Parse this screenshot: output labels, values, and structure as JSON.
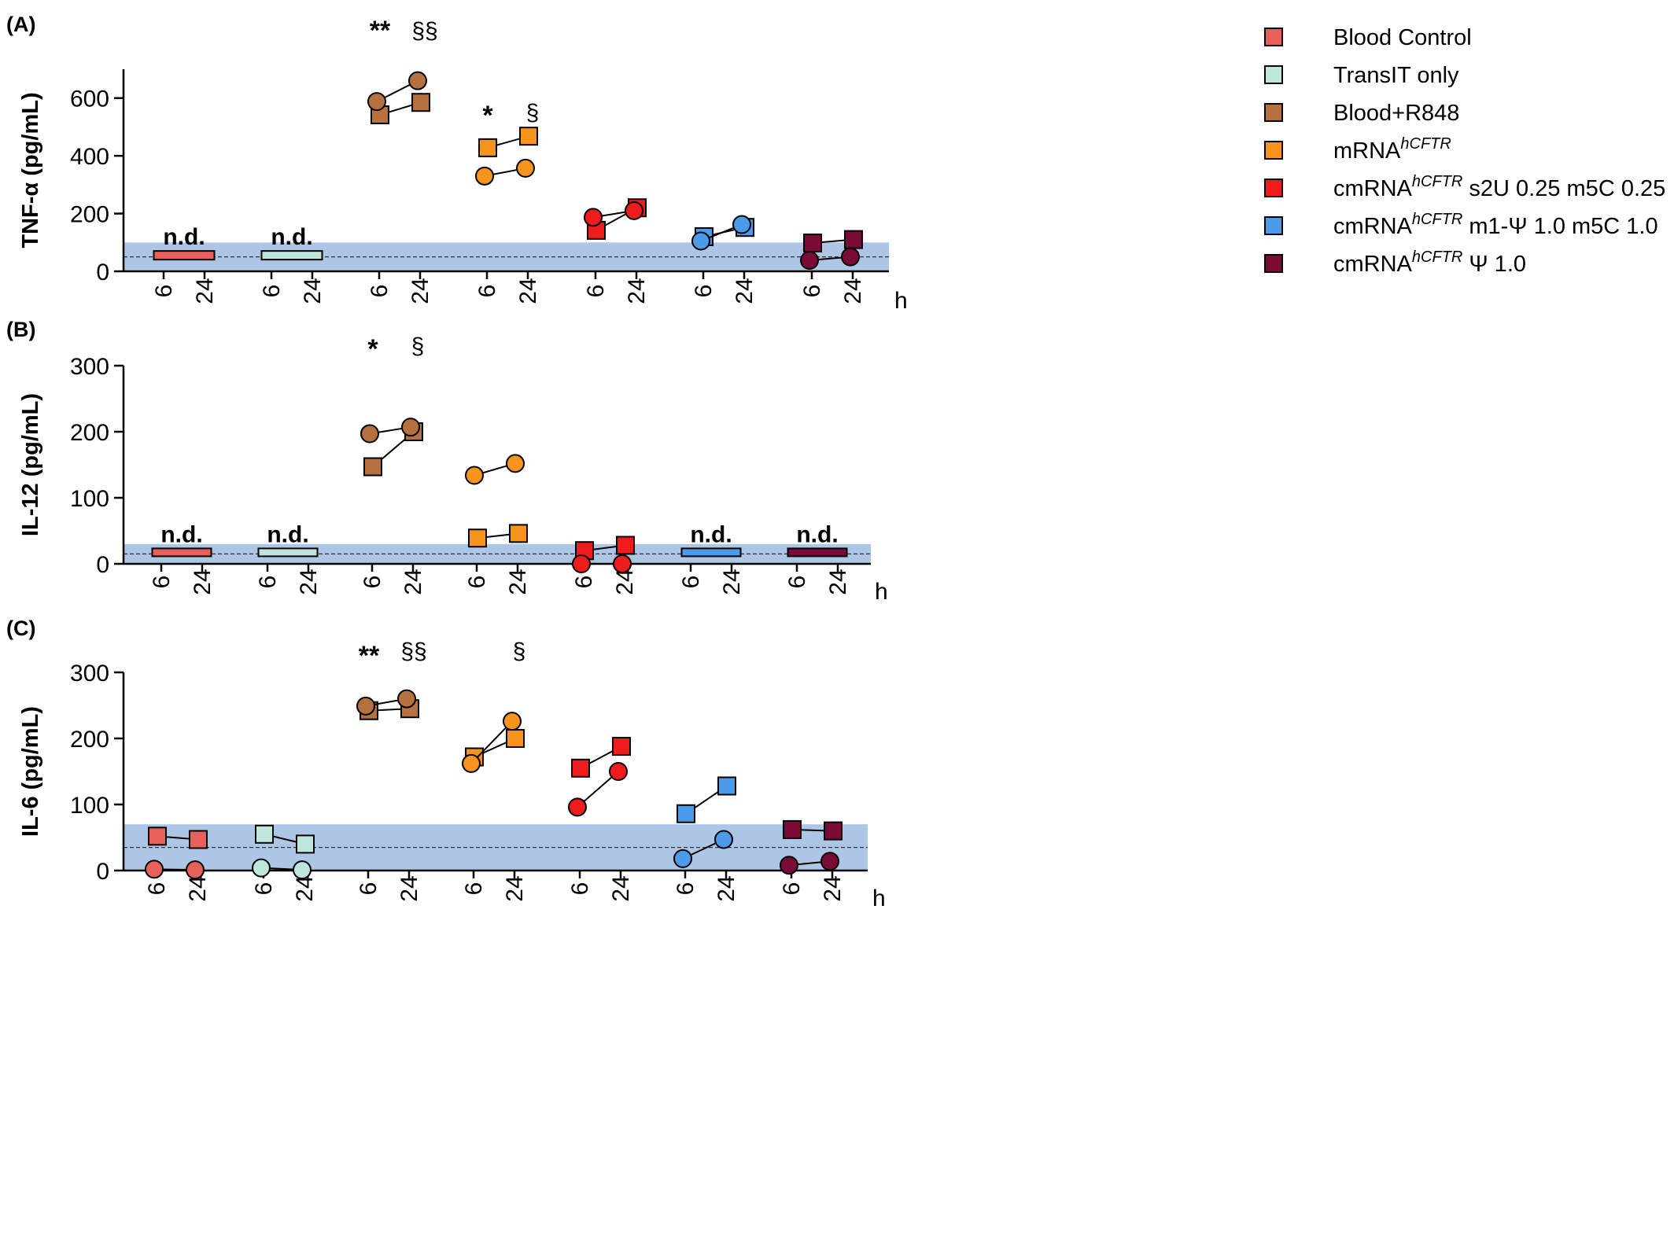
{
  "legend": [
    {
      "label": "Blood Control",
      "sup": "",
      "suffix": "",
      "color": "#e8605c"
    },
    {
      "label": "TransIT only",
      "sup": "",
      "suffix": "",
      "color": "#bfe6dd"
    },
    {
      "label": "Blood+R848",
      "sup": "",
      "suffix": "",
      "color": "#b5713f"
    },
    {
      "label": "mRNA",
      "sup": "hCFTR",
      "suffix": "",
      "color": "#f7941d"
    },
    {
      "label": "cmRNA",
      "sup": "hCFTR",
      "suffix": " s2U 0.25 m5C 0.25",
      "color": "#ee1c1c"
    },
    {
      "label": "cmRNA",
      "sup": "hCFTR",
      "suffix": " m1-Ψ 1.0 m5C 1.0",
      "color": "#4c9be8"
    },
    {
      "label": "cmRNA",
      "sup": "hCFTR",
      "suffix": " Ψ 1.0",
      "color": "#7a0a36"
    }
  ],
  "chart_data": [
    {
      "panel": "(A)",
      "type": "scatter",
      "ylabel": "TNF-α (pg/mL)",
      "ylim": [
        0,
        700
      ],
      "yticks": [
        0,
        200,
        400,
        600
      ],
      "x_tick_labels": [
        "6",
        "24"
      ],
      "x_unit": "h",
      "lod_band": [
        0,
        100
      ],
      "lod_line": 50,
      "groups": [
        {
          "name": "Blood Control",
          "nd": true,
          "circles": null,
          "squares": null,
          "sig6": "",
          "sig24": ""
        },
        {
          "name": "TransIT only",
          "nd": true,
          "circles": null,
          "squares": null,
          "sig6": "",
          "sig24": ""
        },
        {
          "name": "Blood+R848",
          "nd": false,
          "circles": [
            588,
            660
          ],
          "squares": [
            542,
            585
          ],
          "sig6": "**",
          "sig24": "§§"
        },
        {
          "name": "mRNA hCFTR",
          "nd": false,
          "circles": [
            330,
            357
          ],
          "squares": [
            428,
            468
          ],
          "sig6": "*",
          "sig24": "§"
        },
        {
          "name": "cmRNA hCFTR s2U 0.25 m5C 0.25",
          "nd": false,
          "circles": [
            187,
            210
          ],
          "squares": [
            142,
            220
          ],
          "sig6": "",
          "sig24": ""
        },
        {
          "name": "cmRNA hCFTR m1-Ψ 1.0 m5C 1.0",
          "nd": false,
          "circles": [
            105,
            162
          ],
          "squares": [
            120,
            152
          ],
          "sig6": "",
          "sig24": ""
        },
        {
          "name": "cmRNA hCFTR Ψ 1.0",
          "nd": false,
          "circles": [
            38,
            50
          ],
          "squares": [
            98,
            110
          ],
          "sig6": "",
          "sig24": ""
        }
      ],
      "nd_label": "n.d."
    },
    {
      "panel": "(B)",
      "type": "scatter",
      "ylabel": "IL-12 (pg/mL)",
      "ylim": [
        0,
        300
      ],
      "yticks": [
        0,
        100,
        200,
        300
      ],
      "x_tick_labels": [
        "6",
        "24"
      ],
      "x_unit": "h",
      "lod_band": [
        0,
        30
      ],
      "lod_line": 15,
      "groups": [
        {
          "name": "Blood Control",
          "nd": true,
          "circles": null,
          "squares": null,
          "sig6": "",
          "sig24": ""
        },
        {
          "name": "TransIT only",
          "nd": true,
          "circles": null,
          "squares": null,
          "sig6": "",
          "sig24": ""
        },
        {
          "name": "Blood+R848",
          "nd": false,
          "circles": [
            197,
            207
          ],
          "squares": [
            147,
            200
          ],
          "sig6": "*",
          "sig24": "§"
        },
        {
          "name": "mRNA hCFTR",
          "nd": false,
          "circles": [
            134,
            152
          ],
          "squares": [
            39,
            46
          ],
          "sig6": "",
          "sig24": ""
        },
        {
          "name": "cmRNA hCFTR s2U 0.25 m5C 0.25",
          "nd": false,
          "circles": [
            0,
            0
          ],
          "squares": [
            20,
            28
          ],
          "sig6": "",
          "sig24": ""
        },
        {
          "name": "cmRNA hCFTR m1-Ψ 1.0 m5C 1.0",
          "nd": true,
          "circles": null,
          "squares": null,
          "sig6": "",
          "sig24": ""
        },
        {
          "name": "cmRNA hCFTR Ψ 1.0",
          "nd": true,
          "circles": null,
          "squares": null,
          "sig6": "",
          "sig24": ""
        }
      ],
      "nd_label": "n.d."
    },
    {
      "panel": "(C)",
      "type": "scatter",
      "ylabel": "IL-6 (pg/mL)",
      "ylim": [
        0,
        300
      ],
      "yticks": [
        0,
        100,
        200,
        300
      ],
      "x_tick_labels": [
        "6",
        "24"
      ],
      "x_unit": "h",
      "lod_band": [
        0,
        70
      ],
      "lod_line": 35,
      "groups": [
        {
          "name": "Blood Control",
          "nd": false,
          "circles": [
            2,
            1
          ],
          "squares": [
            52,
            47
          ],
          "sig6": "",
          "sig24": ""
        },
        {
          "name": "TransIT only",
          "nd": false,
          "circles": [
            4,
            1
          ],
          "squares": [
            55,
            40
          ],
          "sig6": "",
          "sig24": ""
        },
        {
          "name": "Blood+R848",
          "nd": false,
          "circles": [
            249,
            260
          ],
          "squares": [
            242,
            245
          ],
          "sig6": "**",
          "sig24": "§§"
        },
        {
          "name": "mRNA hCFTR",
          "nd": false,
          "circles": [
            162,
            226
          ],
          "squares": [
            172,
            200
          ],
          "sig6": "",
          "sig24": "§"
        },
        {
          "name": "cmRNA hCFTR s2U 0.25 m5C 0.25",
          "nd": false,
          "circles": [
            96,
            150
          ],
          "squares": [
            155,
            188
          ],
          "sig6": "",
          "sig24": ""
        },
        {
          "name": "cmRNA hCFTR m1-Ψ 1.0 m5C 1.0",
          "nd": false,
          "circles": [
            18,
            47
          ],
          "squares": [
            86,
            128
          ],
          "sig6": "",
          "sig24": ""
        },
        {
          "name": "cmRNA hCFTR Ψ 1.0",
          "nd": false,
          "circles": [
            8,
            14
          ],
          "squares": [
            62,
            60
          ],
          "sig6": "",
          "sig24": ""
        }
      ],
      "nd_label": "n.d."
    }
  ]
}
